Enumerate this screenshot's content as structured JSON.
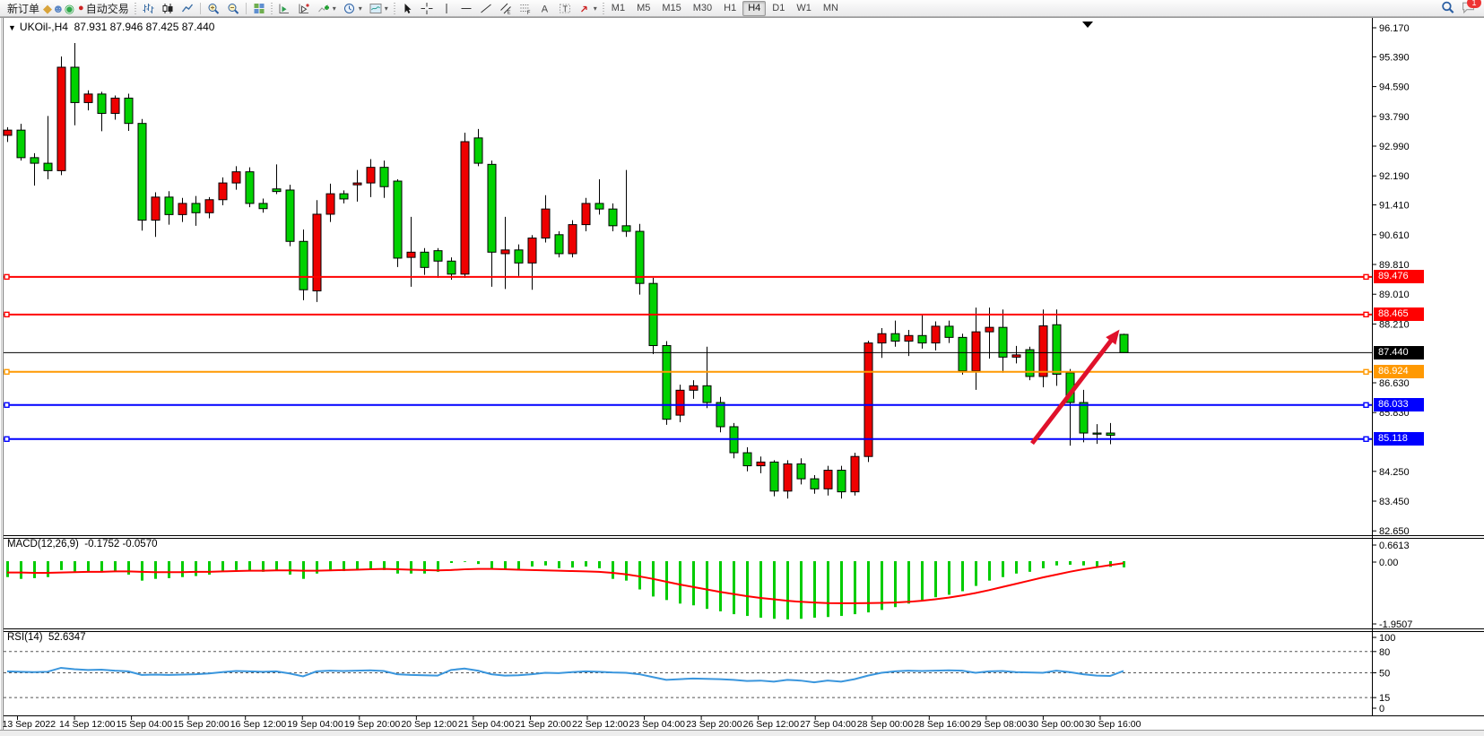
{
  "toolbar": {
    "new_order_label": "新订单",
    "auto_trading_label": "自动交易",
    "left_icons": [
      "yellow-cube-icon",
      "user-icon",
      "signals-icon",
      "autotrading-icon"
    ],
    "chart_type_icons": [
      "bars-chart-icon",
      "candlestick-chart-icon",
      "line-chart-icon"
    ],
    "zoom_icons": [
      "zoom-in-icon",
      "zoom-out-icon"
    ],
    "window_icons": [
      "tile-windows-icon"
    ],
    "chart_tool_icons": [
      "chart-list-icon",
      "chart-next-icon",
      "add-indicator-icon",
      "periods-clock-icon",
      "chart-shift-icon"
    ],
    "draw_tool_icons": [
      "cursor-icon",
      "crosshair-icon",
      "vertical-line-icon",
      "horizontal-line-icon",
      "trendline-icon",
      "equidistant-channel-icon",
      "fibonacci-icon",
      "text-icon",
      "text-label-icon",
      "arrows-icon"
    ],
    "timeframes": [
      "M1",
      "M5",
      "M15",
      "M30",
      "H1",
      "H4",
      "D1",
      "W1",
      "MN"
    ],
    "active_timeframe": "H4",
    "notification_count": "1"
  },
  "chart": {
    "dropdown_glyph": "▼",
    "symbol_period": "UKOil-,H4",
    "ohlc_text": "87.931 87.946 87.425 87.440"
  },
  "price_axis": {
    "ticks": [
      "96.170",
      "95.390",
      "94.590",
      "93.790",
      "92.990",
      "92.190",
      "91.410",
      "90.610",
      "89.810",
      "89.010",
      "88.210",
      "86.630",
      "85.830",
      "84.250",
      "83.450",
      "82.650"
    ]
  },
  "price_labels": [
    {
      "text": "89.476",
      "value": 89.476,
      "color": "#ff0000"
    },
    {
      "text": "88.465",
      "value": 88.465,
      "color": "#ff0000"
    },
    {
      "text": "87.440",
      "value": 87.44,
      "color": "#000000"
    },
    {
      "text": "86.924",
      "value": 86.924,
      "color": "#ff9902"
    },
    {
      "text": "86.033",
      "value": 86.033,
      "color": "#0000ff"
    },
    {
      "text": "85.118",
      "value": 85.118,
      "color": "#0000ff"
    }
  ],
  "time_axis": {
    "labels": [
      "13 Sep 2022",
      "14 Sep 12:00",
      "15 Sep 04:00",
      "15 Sep 20:00",
      "16 Sep 12:00",
      "19 Sep 04:00",
      "19 Sep 20:00",
      "20 Sep 12:00",
      "21 Sep 04:00",
      "21 Sep 20:00",
      "22 Sep 12:00",
      "23 Sep 04:00",
      "23 Sep 20:00",
      "26 Sep 12:00",
      "27 Sep 04:00",
      "28 Sep 00:00",
      "28 Sep 16:00",
      "29 Sep 08:00",
      "30 Sep 00:00",
      "30 Sep 16:00"
    ]
  },
  "indicators": {
    "macd": {
      "label": "MACD(12,26,9)",
      "values_text": "-0.1752 -0.0570",
      "axis_labels": [
        "0.6613",
        "0.00",
        "-1.9507"
      ]
    },
    "rsi": {
      "label": "RSI(14)",
      "value_text": "52.6347",
      "axis_labels": [
        "100",
        "80",
        "50",
        "15",
        "0"
      ],
      "levels": [
        80,
        50,
        15
      ]
    }
  },
  "chart_data": {
    "type": "candlestick",
    "symbol": "UKOil-",
    "timeframe": "H4",
    "title": "UKOil-,H4 87.931 87.946 87.425 87.440",
    "current_bar": {
      "open": 87.931,
      "high": 87.946,
      "low": 87.425,
      "close": 87.44
    },
    "color_convention": "red = bullish, green = bearish",
    "up_color": "#ee0000",
    "down_color": "#00d200",
    "y_range": [
      82.65,
      96.17
    ],
    "candles": [
      [
        93.28,
        93.5,
        93.1,
        93.42
      ],
      [
        93.42,
        93.59,
        92.6,
        92.68
      ],
      [
        92.68,
        92.8,
        91.93,
        92.53
      ],
      [
        92.53,
        93.8,
        92.1,
        92.33
      ],
      [
        92.33,
        95.4,
        92.21,
        95.11
      ],
      [
        95.11,
        95.76,
        93.55,
        94.16
      ],
      [
        94.16,
        94.49,
        93.95,
        94.39
      ],
      [
        94.39,
        94.45,
        93.39,
        93.87
      ],
      [
        93.87,
        94.35,
        93.7,
        94.28
      ],
      [
        94.28,
        94.4,
        93.4,
        93.6
      ],
      [
        93.6,
        93.72,
        90.72,
        91.0
      ],
      [
        91.0,
        91.75,
        90.55,
        91.62
      ],
      [
        91.62,
        91.78,
        90.88,
        91.15
      ],
      [
        91.15,
        91.6,
        90.95,
        91.45
      ],
      [
        91.45,
        91.65,
        90.85,
        91.2
      ],
      [
        91.2,
        91.62,
        91.05,
        91.55
      ],
      [
        91.55,
        92.15,
        91.4,
        92.0
      ],
      [
        92.0,
        92.45,
        91.82,
        92.3
      ],
      [
        92.3,
        92.42,
        91.35,
        91.45
      ],
      [
        91.45,
        91.58,
        91.2,
        91.31
      ],
      [
        91.84,
        92.5,
        91.7,
        91.77
      ],
      [
        91.81,
        91.95,
        90.3,
        90.43
      ],
      [
        90.43,
        90.75,
        88.85,
        89.13
      ],
      [
        89.1,
        91.54,
        88.8,
        91.16
      ],
      [
        91.16,
        91.98,
        90.95,
        91.71
      ],
      [
        91.71,
        91.8,
        91.45,
        91.57
      ],
      [
        91.95,
        92.35,
        91.5,
        92.0
      ],
      [
        92.0,
        92.64,
        91.62,
        92.42
      ],
      [
        92.42,
        92.6,
        91.6,
        91.9
      ],
      [
        92.05,
        92.1,
        89.74,
        89.98
      ],
      [
        90.0,
        91.09,
        89.21,
        90.14
      ],
      [
        90.14,
        90.25,
        89.53,
        89.73
      ],
      [
        90.18,
        90.25,
        89.45,
        89.9
      ],
      [
        89.9,
        90.0,
        89.4,
        89.55
      ],
      [
        89.55,
        93.35,
        89.45,
        93.11
      ],
      [
        93.21,
        93.45,
        92.45,
        92.53
      ],
      [
        92.5,
        92.6,
        89.21,
        90.14
      ],
      [
        90.1,
        91.09,
        89.15,
        90.2
      ],
      [
        90.2,
        90.35,
        89.5,
        89.85
      ],
      [
        89.85,
        90.6,
        89.13,
        90.52
      ],
      [
        90.52,
        91.67,
        90.4,
        91.3
      ],
      [
        90.61,
        90.7,
        90.0,
        90.1
      ],
      [
        90.1,
        91.0,
        90.0,
        90.88
      ],
      [
        90.88,
        91.6,
        90.7,
        91.45
      ],
      [
        91.45,
        92.1,
        91.15,
        91.3
      ],
      [
        91.3,
        91.45,
        90.7,
        90.85
      ],
      [
        90.85,
        92.35,
        90.55,
        90.7
      ],
      [
        90.7,
        90.9,
        89.0,
        89.3
      ],
      [
        89.3,
        89.45,
        87.4,
        87.63
      ],
      [
        87.63,
        87.75,
        85.5,
        85.65
      ],
      [
        85.76,
        86.58,
        85.57,
        86.43
      ],
      [
        86.43,
        86.7,
        86.2,
        86.55
      ],
      [
        86.55,
        87.6,
        85.95,
        86.1
      ],
      [
        86.1,
        86.25,
        85.3,
        85.45
      ],
      [
        85.45,
        85.55,
        84.6,
        84.75
      ],
      [
        84.75,
        84.9,
        84.25,
        84.4
      ],
      [
        84.4,
        84.65,
        84.2,
        84.5
      ],
      [
        84.5,
        84.55,
        83.58,
        83.72
      ],
      [
        83.72,
        84.55,
        83.52,
        84.45
      ],
      [
        84.45,
        84.6,
        83.9,
        84.05
      ],
      [
        84.05,
        84.15,
        83.65,
        83.78
      ],
      [
        83.78,
        84.4,
        83.6,
        84.28
      ],
      [
        84.28,
        84.4,
        83.52,
        83.7
      ],
      [
        83.7,
        84.75,
        83.6,
        84.65
      ],
      [
        84.65,
        87.76,
        84.5,
        87.7
      ],
      [
        87.7,
        88.1,
        87.3,
        87.95
      ],
      [
        87.95,
        88.3,
        87.6,
        87.75
      ],
      [
        87.75,
        88.05,
        87.35,
        87.9
      ],
      [
        87.9,
        88.45,
        87.55,
        87.7
      ],
      [
        87.7,
        88.28,
        87.5,
        88.15
      ],
      [
        88.15,
        88.3,
        87.7,
        87.85
      ],
      [
        87.85,
        87.95,
        86.85,
        86.95
      ],
      [
        86.95,
        88.65,
        86.44,
        88.0
      ],
      [
        88.0,
        88.65,
        87.28,
        88.12
      ],
      [
        88.12,
        88.6,
        86.9,
        87.32
      ],
      [
        87.32,
        87.62,
        87.15,
        87.38
      ],
      [
        87.52,
        87.6,
        86.7,
        86.8
      ],
      [
        86.8,
        88.6,
        86.51,
        88.16
      ],
      [
        88.19,
        88.6,
        86.55,
        86.86
      ],
      [
        86.9,
        87.0,
        84.94,
        86.1
      ],
      [
        86.1,
        86.44,
        85.03,
        85.28
      ],
      [
        85.28,
        85.52,
        84.99,
        85.25
      ],
      [
        85.28,
        85.55,
        84.98,
        85.22
      ],
      [
        87.93,
        87.95,
        87.43,
        87.44
      ]
    ],
    "hlines": [
      {
        "value": 89.476,
        "color": "#ff0000",
        "width": 2,
        "markers": true
      },
      {
        "value": 88.465,
        "color": "#ff0000",
        "width": 2,
        "markers": true
      },
      {
        "value": 87.44,
        "color": "#000000",
        "width": 1,
        "markers": false
      },
      {
        "value": 86.924,
        "color": "#ff9902",
        "width": 2,
        "markers": true
      },
      {
        "value": 86.033,
        "color": "#0000ff",
        "width": 2,
        "markers": true
      },
      {
        "value": 85.118,
        "color": "#0000ff",
        "width": 2,
        "markers": true
      }
    ],
    "macd": {
      "histogram_color": "#00cc00",
      "signal_color": "#ff0000",
      "histogram": [
        -0.45,
        -0.5,
        -0.48,
        -0.45,
        -0.25,
        -0.3,
        -0.28,
        -0.32,
        -0.3,
        -0.38,
        -0.55,
        -0.5,
        -0.48,
        -0.45,
        -0.42,
        -0.38,
        -0.3,
        -0.25,
        -0.28,
        -0.3,
        -0.28,
        -0.38,
        -0.5,
        -0.35,
        -0.28,
        -0.28,
        -0.25,
        -0.22,
        -0.25,
        -0.35,
        -0.35,
        -0.35,
        -0.3,
        -0.05,
        -0.02,
        -0.08,
        -0.2,
        -0.25,
        -0.22,
        -0.15,
        -0.12,
        -0.2,
        -0.18,
        -0.15,
        -0.2,
        -0.5,
        -0.55,
        -0.8,
        -1.0,
        -1.1,
        -1.2,
        -1.25,
        -1.35,
        -1.42,
        -1.5,
        -1.55,
        -1.6,
        -1.63,
        -1.65,
        -1.63,
        -1.6,
        -1.58,
        -1.55,
        -1.5,
        -1.45,
        -1.38,
        -1.3,
        -1.2,
        -1.1,
        -1.02,
        -0.95,
        -0.85,
        -0.7,
        -0.55,
        -0.45,
        -0.35,
        -0.3,
        -0.2,
        -0.12,
        -0.1,
        -0.12,
        -0.15,
        -0.16,
        -0.175
      ],
      "signal": [
        -0.32,
        -0.32,
        -0.33,
        -0.33,
        -0.32,
        -0.31,
        -0.3,
        -0.3,
        -0.29,
        -0.29,
        -0.3,
        -0.31,
        -0.31,
        -0.31,
        -0.3,
        -0.3,
        -0.29,
        -0.28,
        -0.27,
        -0.27,
        -0.26,
        -0.26,
        -0.27,
        -0.27,
        -0.26,
        -0.25,
        -0.24,
        -0.23,
        -0.22,
        -0.23,
        -0.24,
        -0.25,
        -0.26,
        -0.25,
        -0.23,
        -0.22,
        -0.22,
        -0.23,
        -0.24,
        -0.25,
        -0.26,
        -0.27,
        -0.28,
        -0.29,
        -0.3,
        -0.33,
        -0.37,
        -0.43,
        -0.5,
        -0.58,
        -0.66,
        -0.73,
        -0.8,
        -0.87,
        -0.93,
        -0.99,
        -1.04,
        -1.08,
        -1.12,
        -1.15,
        -1.17,
        -1.185,
        -1.19,
        -1.19,
        -1.185,
        -1.18,
        -1.17,
        -1.15,
        -1.12,
        -1.08,
        -1.03,
        -0.97,
        -0.9,
        -0.82,
        -0.73,
        -0.64,
        -0.55,
        -0.46,
        -0.38,
        -0.3,
        -0.23,
        -0.17,
        -0.11,
        -0.057
      ]
    },
    "rsi": {
      "color": "#3a96dd",
      "levels": [
        80,
        50,
        15
      ],
      "values": [
        52,
        51.5,
        51,
        51.5,
        57,
        55,
        54,
        54.5,
        53,
        52,
        47,
        47.5,
        47,
        47.5,
        48,
        49,
        51,
        52.5,
        52,
        51.5,
        52,
        49,
        45,
        52,
        53,
        52.5,
        53,
        53.5,
        52.5,
        48,
        47,
        46.5,
        46,
        54,
        56,
        53,
        48,
        46,
        46.5,
        48,
        50,
        49.5,
        51,
        52,
        51.5,
        50.5,
        50,
        48,
        44,
        40,
        41,
        42,
        41.5,
        41,
        40,
        38.5,
        39,
        37.5,
        40,
        39,
        36.5,
        39,
        37.5,
        41,
        46,
        50,
        52,
        53,
        52.5,
        53,
        53.5,
        53,
        50,
        52,
        52.5,
        51,
        50.5,
        50,
        53,
        51,
        48,
        46,
        45.5,
        52.6
      ]
    },
    "trend_arrow": {
      "from_bar": 76.2,
      "from_price": 85.0,
      "to_bar": 82.7,
      "to_price": 88.06,
      "color": "#e0112b"
    }
  }
}
